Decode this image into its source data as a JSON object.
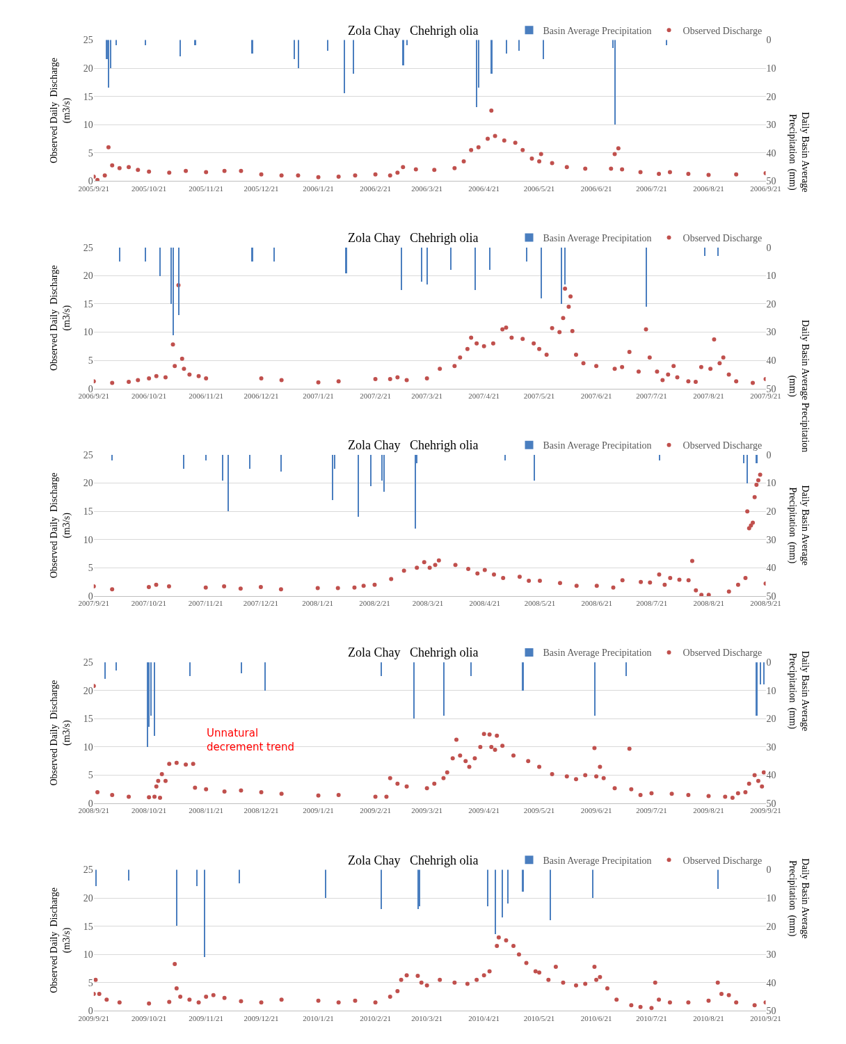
{
  "chart_data": [
    {
      "type": "scatter",
      "title": "Zola Chay   Chehrigh olia",
      "ylabel": "Observed Daily  Discharge\n(m3/s)",
      "y2label": "Daily Basin Average\nPrecipitation  (mm)",
      "legend": "top right",
      "grid": "y",
      "marker": "circle",
      "xlim": [
        "2005-09-21",
        "2006-09-21"
      ],
      "xticks": [
        {
          "value": "2005-09-21",
          "label": "2005/9/21"
        },
        {
          "value": "2005-10-21",
          "label": "2005/10/21"
        },
        {
          "value": "2005-11-21",
          "label": "2005/11/21"
        },
        {
          "value": "2005-12-21",
          "label": "2005/12/21"
        },
        {
          "value": "2006-01-21",
          "label": "2006/1/21"
        },
        {
          "value": "2006-02-21",
          "label": "2006/2/21"
        },
        {
          "value": "2006-03-21",
          "label": "2006/3/21"
        },
        {
          "value": "2006-04-21",
          "label": "2006/4/21"
        },
        {
          "value": "2006-05-21",
          "label": "2006/5/21"
        },
        {
          "value": "2006-06-21",
          "label": "2006/6/21"
        },
        {
          "value": "2006-07-21",
          "label": "2006/7/21"
        },
        {
          "value": "2006-08-21",
          "label": "2006/8/21"
        },
        {
          "value": "2006-09-21",
          "label": "2006/9/21"
        }
      ],
      "ylim": [
        0,
        25
      ],
      "yticks": [
        0,
        5,
        10,
        15,
        20,
        25
      ],
      "y2lim": [
        50,
        0
      ],
      "y2ticks": [
        0,
        10,
        20,
        30,
        40,
        50
      ],
      "series": [
        {
          "name": "Basin Average Precipitation",
          "type": "bar",
          "axis": "y2",
          "color": "#4a7ebf",
          "x": [
            "2005-09-28",
            "2005-09-29",
            "2005-09-30",
            "2005-10-03",
            "2005-10-19",
            "2005-11-07",
            "2005-11-15",
            "2005-12-16",
            "2006-01-08",
            "2006-01-10",
            "2006-01-26",
            "2006-02-04",
            "2006-02-09",
            "2006-03-08",
            "2006-03-10",
            "2006-04-17",
            "2006-04-18",
            "2006-04-25",
            "2006-05-03",
            "2006-05-10",
            "2006-05-23",
            "2006-06-30",
            "2006-07-01",
            "2006-07-29"
          ],
          "values": [
            7,
            17,
            10,
            2,
            2,
            6,
            2,
            5,
            7,
            10,
            4,
            19,
            12,
            9,
            2,
            24,
            17,
            12,
            5,
            4,
            7,
            3,
            30,
            2
          ]
        },
        {
          "name": "Observed Discharge",
          "color": "#c0504d",
          "x": [
            "2005-09-21",
            "2005-09-23",
            "2005-09-27",
            "2005-09-29",
            "2005-10-01",
            "2005-10-05",
            "2005-10-10",
            "2005-10-15",
            "2005-10-21",
            "2005-11-01",
            "2005-11-10",
            "2005-11-21",
            "2005-12-01",
            "2005-12-10",
            "2005-12-21",
            "2006-01-01",
            "2006-01-10",
            "2006-01-21",
            "2006-02-01",
            "2006-02-10",
            "2006-02-21",
            "2006-03-01",
            "2006-03-05",
            "2006-03-08",
            "2006-03-15",
            "2006-03-25",
            "2006-04-05",
            "2006-04-10",
            "2006-04-14",
            "2006-04-18",
            "2006-04-23",
            "2006-04-25",
            "2006-04-27",
            "2006-05-02",
            "2006-05-08",
            "2006-05-12",
            "2006-05-17",
            "2006-05-21",
            "2006-05-22",
            "2006-05-28",
            "2006-06-05",
            "2006-06-15",
            "2006-06-29",
            "2006-07-01",
            "2006-07-03",
            "2006-07-05",
            "2006-07-15",
            "2006-07-25",
            "2006-07-31",
            "2006-08-10",
            "2006-08-21",
            "2006-09-05",
            "2006-09-21"
          ],
          "values": [
            0.8,
            0.2,
            1.0,
            6.0,
            2.8,
            2.3,
            2.5,
            2.0,
            1.7,
            1.5,
            1.8,
            1.6,
            1.8,
            1.8,
            1.2,
            1.0,
            1.0,
            0.7,
            0.8,
            1.0,
            1.2,
            1.0,
            1.5,
            2.5,
            2.1,
            2.0,
            2.3,
            3.5,
            5.5,
            6.0,
            7.5,
            12.5,
            8.0,
            7.2,
            6.8,
            5.5,
            4.0,
            3.5,
            4.8,
            3.2,
            2.5,
            2.2,
            2.2,
            4.8,
            5.8,
            2.1,
            1.6,
            1.3,
            1.6,
            1.3,
            1.1,
            1.2,
            1.4
          ]
        }
      ]
    },
    {
      "type": "scatter",
      "title": "Zola Chay   Chehrigh olia",
      "ylabel": "Observed Daily  Discharge\n(m3/s)",
      "y2label": "Daily Basin Average Precipitation\n(mm)",
      "legend": "top right",
      "grid": "y",
      "marker": "circle",
      "xlim": [
        "2006-09-21",
        "2007-09-21"
      ],
      "xticks": [
        {
          "value": "2006-09-21",
          "label": "2006/9/21"
        },
        {
          "value": "2006-10-21",
          "label": "2006/10/21"
        },
        {
          "value": "2006-11-21",
          "label": "2006/11/21"
        },
        {
          "value": "2006-12-21",
          "label": "2006/12/21"
        },
        {
          "value": "2007-01-21",
          "label": "2007/1/21"
        },
        {
          "value": "2007-02-21",
          "label": "2007/2/21"
        },
        {
          "value": "2007-03-21",
          "label": "2007/3/21"
        },
        {
          "value": "2007-04-21",
          "label": "2007/4/21"
        },
        {
          "value": "2007-05-21",
          "label": "2007/5/21"
        },
        {
          "value": "2007-06-21",
          "label": "2007/6/21"
        },
        {
          "value": "2007-07-21",
          "label": "2007/7/21"
        },
        {
          "value": "2007-08-21",
          "label": "2007/8/21"
        },
        {
          "value": "2007-09-21",
          "label": "2007/9/21"
        }
      ],
      "ylim": [
        0,
        25
      ],
      "yticks": [
        0,
        5,
        10,
        15,
        20,
        25
      ],
      "y2lim": [
        50,
        0
      ],
      "y2ticks": [
        0,
        10,
        20,
        30,
        40,
        50
      ],
      "series": [
        {
          "name": "Basin Average Precipitation",
          "type": "bar",
          "axis": "y2",
          "color": "#4a7ebf",
          "x": [
            "2006-10-05",
            "2006-10-19",
            "2006-10-27",
            "2006-11-02",
            "2006-11-03",
            "2006-11-06",
            "2006-12-16",
            "2006-12-28",
            "2007-02-05",
            "2007-03-07",
            "2007-03-18",
            "2007-03-21",
            "2007-04-03",
            "2007-04-16",
            "2007-04-24",
            "2007-05-14",
            "2007-05-22",
            "2007-06-02",
            "2007-06-04",
            "2007-07-18",
            "2007-08-19",
            "2007-08-26"
          ],
          "values": [
            5,
            5,
            10,
            20,
            31,
            24,
            5,
            5,
            9,
            15,
            12,
            13,
            8,
            15,
            8,
            5,
            18,
            20,
            13,
            21,
            3,
            3
          ]
        },
        {
          "name": "Observed Discharge",
          "color": "#c0504d",
          "x": [
            "2006-09-21",
            "2006-10-01",
            "2006-10-10",
            "2006-10-15",
            "2006-10-21",
            "2006-10-25",
            "2006-10-30",
            "2006-11-03",
            "2006-11-04",
            "2006-11-06",
            "2006-11-08",
            "2006-11-09",
            "2006-11-12",
            "2006-11-17",
            "2006-11-21",
            "2006-12-21",
            "2007-01-01",
            "2007-01-21",
            "2007-02-01",
            "2007-02-21",
            "2007-03-01",
            "2007-03-05",
            "2007-03-10",
            "2007-03-21",
            "2007-03-28",
            "2007-04-05",
            "2007-04-08",
            "2007-04-12",
            "2007-04-14",
            "2007-04-17",
            "2007-04-21",
            "2007-04-26",
            "2007-05-01",
            "2007-05-03",
            "2007-05-06",
            "2007-05-12",
            "2007-05-18",
            "2007-05-21",
            "2007-05-25",
            "2007-05-28",
            "2007-06-01",
            "2007-06-03",
            "2007-06-04",
            "2007-06-06",
            "2007-06-07",
            "2007-06-08",
            "2007-06-10",
            "2007-06-14",
            "2007-06-21",
            "2007-07-01",
            "2007-07-05",
            "2007-07-09",
            "2007-07-14",
            "2007-07-18",
            "2007-07-20",
            "2007-07-24",
            "2007-07-27",
            "2007-07-30",
            "2007-08-02",
            "2007-08-04",
            "2007-08-10",
            "2007-08-14",
            "2007-08-17",
            "2007-08-22",
            "2007-08-24",
            "2007-08-27",
            "2007-08-29",
            "2007-09-01",
            "2007-09-05",
            "2007-09-14",
            "2007-09-21"
          ],
          "values": [
            1.3,
            1.0,
            1.2,
            1.5,
            1.8,
            2.2,
            2.0,
            7.8,
            4.0,
            18.3,
            5.3,
            3.5,
            2.5,
            2.2,
            1.8,
            1.8,
            1.5,
            1.1,
            1.3,
            1.7,
            1.7,
            2.0,
            1.5,
            1.8,
            3.5,
            4.0,
            5.5,
            7.0,
            9.0,
            8.0,
            7.5,
            8.0,
            10.5,
            10.8,
            9.0,
            8.8,
            8.0,
            7.0,
            6.0,
            10.7,
            10.0,
            12.5,
            17.7,
            14.5,
            16.3,
            10.2,
            6.0,
            4.5,
            4.0,
            3.5,
            3.8,
            6.5,
            3.0,
            10.5,
            5.5,
            3.0,
            1.5,
            2.5,
            4.0,
            2.0,
            1.3,
            1.2,
            3.8,
            3.5,
            8.7,
            4.5,
            5.5,
            2.5,
            1.3,
            1.0,
            1.7
          ]
        }
      ]
    },
    {
      "type": "scatter",
      "title": "Zola Chay   Chehrigh olia",
      "ylabel": "Observed Daily  Discharge\n(m3/s)",
      "y2label": "Daily Basin Average\nPrecipitation  (mm)",
      "legend": "top right",
      "grid": "y",
      "marker": "circle",
      "xlim": [
        "2007-09-21",
        "2008-09-21"
      ],
      "xticks": [
        {
          "value": "2007-09-21",
          "label": "2007/9/21"
        },
        {
          "value": "2007-10-21",
          "label": "2007/10/21"
        },
        {
          "value": "2007-11-21",
          "label": "2007/11/21"
        },
        {
          "value": "2007-12-21",
          "label": "2007/12/21"
        },
        {
          "value": "2008-01-21",
          "label": "2008/1/21"
        },
        {
          "value": "2008-02-21",
          "label": "2008/2/21"
        },
        {
          "value": "2008-03-21",
          "label": "2008/3/21"
        },
        {
          "value": "2008-04-21",
          "label": "2008/4/21"
        },
        {
          "value": "2008-05-21",
          "label": "2008/5/21"
        },
        {
          "value": "2008-06-21",
          "label": "2008/6/21"
        },
        {
          "value": "2008-07-21",
          "label": "2008/7/21"
        },
        {
          "value": "2008-08-21",
          "label": "2008/8/21"
        },
        {
          "value": "2008-09-21",
          "label": "2008/9/21"
        }
      ],
      "ylim": [
        0,
        25
      ],
      "yticks": [
        0,
        5,
        10,
        15,
        20,
        25
      ],
      "y2lim": [
        50,
        0
      ],
      "y2ticks": [
        0,
        10,
        20,
        30,
        40,
        50
      ],
      "series": [
        {
          "name": "Basin Average Precipitation",
          "type": "bar",
          "axis": "y2",
          "color": "#4a7ebf",
          "x": [
            "2007-10-01",
            "2007-11-09",
            "2007-11-21",
            "2007-11-30",
            "2007-12-03",
            "2007-12-15",
            "2008-01-01",
            "2008-01-29",
            "2008-01-30",
            "2008-02-12",
            "2008-02-19",
            "2008-02-25",
            "2008-02-26",
            "2008-03-14",
            "2008-03-15",
            "2008-05-02",
            "2008-05-18",
            "2008-07-25",
            "2008-09-09",
            "2008-09-11",
            "2008-09-16"
          ],
          "values": [
            2,
            5,
            2,
            9,
            20,
            5,
            6,
            16,
            5,
            22,
            11,
            9,
            13,
            26,
            3,
            2,
            9,
            2,
            3,
            10,
            3
          ]
        },
        {
          "name": "Observed Discharge",
          "color": "#c0504d",
          "x": [
            "2007-09-21",
            "2007-10-01",
            "2007-10-21",
            "2007-10-25",
            "2007-11-01",
            "2007-11-21",
            "2007-12-01",
            "2007-12-10",
            "2007-12-21",
            "2008-01-01",
            "2008-01-21",
            "2008-02-01",
            "2008-02-10",
            "2008-02-15",
            "2008-02-21",
            "2008-03-01",
            "2008-03-08",
            "2008-03-15",
            "2008-03-19",
            "2008-03-22",
            "2008-03-25",
            "2008-03-27",
            "2008-04-05",
            "2008-04-12",
            "2008-04-17",
            "2008-04-21",
            "2008-04-26",
            "2008-05-01",
            "2008-05-10",
            "2008-05-15",
            "2008-05-21",
            "2008-06-01",
            "2008-06-10",
            "2008-06-21",
            "2008-06-30",
            "2008-07-05",
            "2008-07-15",
            "2008-07-20",
            "2008-07-25",
            "2008-07-28",
            "2008-07-31",
            "2008-08-05",
            "2008-08-10",
            "2008-08-12",
            "2008-08-14",
            "2008-08-17",
            "2008-08-21",
            "2008-09-01",
            "2008-09-06",
            "2008-09-10",
            "2008-09-11",
            "2008-09-12",
            "2008-09-13",
            "2008-09-14",
            "2008-09-15",
            "2008-09-16",
            "2008-09-17",
            "2008-09-18",
            "2008-09-21"
          ],
          "values": [
            1.7,
            1.2,
            1.6,
            2.0,
            1.7,
            1.5,
            1.7,
            1.3,
            1.6,
            1.2,
            1.4,
            1.4,
            1.5,
            1.8,
            2.0,
            3.0,
            4.5,
            5.0,
            6.0,
            5.0,
            5.5,
            6.3,
            5.5,
            4.8,
            4.0,
            4.6,
            3.8,
            3.2,
            3.4,
            2.7,
            2.7,
            2.3,
            1.8,
            1.8,
            1.5,
            2.8,
            2.5,
            2.4,
            3.8,
            2.0,
            3.2,
            2.9,
            2.8,
            6.2,
            1.0,
            0.2,
            0.2,
            0.8,
            2.0,
            3.2,
            15.0,
            12.0,
            12.5,
            13.0,
            17.5,
            19.7,
            20.5,
            21.5,
            2.2
          ]
        }
      ]
    },
    {
      "type": "scatter",
      "title": "Zola Chay   Chehrigh olia",
      "ylabel": "Observed Daily  Discharge\n(m3/s)",
      "y2label": "Daily Basin Average\nPrecipitation  (mm)",
      "legend": "top right",
      "grid": "y",
      "marker": "circle",
      "annotations": [
        "Unnatural\ndecrement trend"
      ],
      "xlim": [
        "2008-09-21",
        "2009-09-21"
      ],
      "xticks": [
        {
          "value": "2008-09-21",
          "label": "2008/9/21"
        },
        {
          "value": "2008-10-21",
          "label": "2008/10/21"
        },
        {
          "value": "2008-11-21",
          "label": "2008/11/21"
        },
        {
          "value": "2008-12-21",
          "label": "2008/12/21"
        },
        {
          "value": "2009-01-21",
          "label": "2009/1/21"
        },
        {
          "value": "2009-02-21",
          "label": "2009/2/21"
        },
        {
          "value": "2009-03-21",
          "label": "2009/3/21"
        },
        {
          "value": "2009-04-21",
          "label": "2009/4/21"
        },
        {
          "value": "2009-05-21",
          "label": "2009/5/21"
        },
        {
          "value": "2009-06-21",
          "label": "2009/6/21"
        },
        {
          "value": "2009-07-21",
          "label": "2009/7/21"
        },
        {
          "value": "2009-08-21",
          "label": "2009/8/21"
        },
        {
          "value": "2009-09-21",
          "label": "2009/9/21"
        }
      ],
      "ylim": [
        0,
        25
      ],
      "yticks": [
        0,
        5,
        10,
        15,
        20,
        25
      ],
      "y2lim": [
        50,
        0
      ],
      "y2ticks": [
        0,
        10,
        20,
        30,
        40,
        50
      ],
      "series": [
        {
          "name": "Basin Average Precipitation",
          "type": "bar",
          "axis": "y2",
          "color": "#4a7ebf",
          "x": [
            "2008-09-27",
            "2008-10-03",
            "2008-10-20",
            "2008-10-21",
            "2008-10-22",
            "2008-10-24",
            "2008-11-12",
            "2008-12-10",
            "2008-12-23",
            "2009-02-24",
            "2009-03-14",
            "2009-03-30",
            "2009-04-14",
            "2009-05-12",
            "2009-06-20",
            "2009-07-07",
            "2009-09-16",
            "2009-09-18",
            "2009-09-20"
          ],
          "values": [
            6,
            3,
            30,
            23,
            19,
            26,
            5,
            4,
            10,
            5,
            20,
            19,
            5,
            10,
            19,
            5,
            19,
            8,
            8
          ]
        },
        {
          "name": "Observed Discharge",
          "color": "#c0504d",
          "x": [
            "2008-09-21",
            "2008-09-23",
            "2008-10-01",
            "2008-10-10",
            "2008-10-21",
            "2008-10-24",
            "2008-10-25",
            "2008-10-26",
            "2008-10-27",
            "2008-10-28",
            "2008-10-30",
            "2008-11-01",
            "2008-11-05",
            "2008-11-10",
            "2008-11-14",
            "2008-11-15",
            "2008-11-21",
            "2008-12-01",
            "2008-12-10",
            "2008-12-21",
            "2009-01-01",
            "2009-01-21",
            "2009-02-01",
            "2009-02-21",
            "2009-02-27",
            "2009-03-01",
            "2009-03-05",
            "2009-03-10",
            "2009-03-21",
            "2009-03-25",
            "2009-03-30",
            "2009-04-01",
            "2009-04-04",
            "2009-04-06",
            "2009-04-08",
            "2009-04-11",
            "2009-04-13",
            "2009-04-16",
            "2009-04-19",
            "2009-04-21",
            "2009-04-24",
            "2009-04-25",
            "2009-04-27",
            "2009-04-28",
            "2009-05-01",
            "2009-05-07",
            "2009-05-15",
            "2009-05-21",
            "2009-05-28",
            "2009-06-05",
            "2009-06-10",
            "2009-06-15",
            "2009-06-20",
            "2009-06-21",
            "2009-06-23",
            "2009-06-25",
            "2009-07-01",
            "2009-07-09",
            "2009-07-10",
            "2009-07-15",
            "2009-07-21",
            "2009-08-01",
            "2009-08-10",
            "2009-08-21",
            "2009-08-30",
            "2009-09-03",
            "2009-09-06",
            "2009-09-10",
            "2009-09-12",
            "2009-09-15",
            "2009-09-17",
            "2009-09-19",
            "2009-09-20"
          ],
          "values": [
            20.8,
            2.0,
            1.5,
            1.2,
            1.1,
            1.2,
            3.0,
            4.0,
            1.0,
            5.2,
            4.0,
            7.0,
            7.2,
            6.9,
            7.0,
            2.8,
            2.5,
            2.1,
            2.3,
            2.0,
            1.7,
            1.4,
            1.5,
            1.2,
            1.2,
            4.5,
            3.5,
            3.0,
            2.7,
            3.5,
            4.5,
            5.5,
            8.0,
            11.3,
            8.5,
            7.5,
            6.5,
            8.0,
            10.0,
            12.3,
            12.2,
            10.0,
            9.5,
            12.0,
            10.2,
            8.5,
            7.5,
            6.5,
            5.2,
            4.8,
            4.3,
            5.0,
            9.8,
            4.8,
            6.5,
            4.5,
            2.7,
            9.7,
            2.5,
            1.5,
            1.8,
            1.7,
            1.5,
            1.3,
            1.2,
            1.0,
            1.8,
            2.0,
            3.5,
            5.0,
            4.0,
            3.0,
            5.5
          ]
        }
      ]
    },
    {
      "type": "scatter",
      "title": "Zola Chay   Chehrigh olia",
      "ylabel": "Observed Daily  Discharge\n(m3/s)",
      "y2label": "Daily Basin Average\nPrecipitation  (mm)",
      "legend": "top right",
      "grid": "y",
      "marker": "circle",
      "xlim": [
        "2009-09-21",
        "2010-09-21"
      ],
      "xticks": [
        {
          "value": "2009-09-21",
          "label": "2009/9/21"
        },
        {
          "value": "2009-10-21",
          "label": "2009/10/21"
        },
        {
          "value": "2009-11-21",
          "label": "2009/11/21"
        },
        {
          "value": "2009-12-21",
          "label": "2009/12/21"
        },
        {
          "value": "2010-01-21",
          "label": "2010/1/21"
        },
        {
          "value": "2010-02-21",
          "label": "2010/2/21"
        },
        {
          "value": "2010-03-21",
          "label": "2010/3/21"
        },
        {
          "value": "2010-04-21",
          "label": "2010/4/21"
        },
        {
          "value": "2010-05-21",
          "label": "2010/5/21"
        },
        {
          "value": "2010-06-21",
          "label": "2010/6/21"
        },
        {
          "value": "2010-07-21",
          "label": "2010/7/21"
        },
        {
          "value": "2010-08-21",
          "label": "2010/8/21"
        },
        {
          "value": "2010-09-21",
          "label": "2010/9/21"
        }
      ],
      "ylim": [
        0,
        25
      ],
      "yticks": [
        0,
        5,
        10,
        15,
        20,
        25
      ],
      "y2lim": [
        50,
        0
      ],
      "y2ticks": [
        0,
        10,
        20,
        30,
        40,
        50
      ],
      "series": [
        {
          "name": "Basin Average Precipitation",
          "type": "bar",
          "axis": "y2",
          "color": "#4a7ebf",
          "x": [
            "2009-09-22",
            "2009-10-10",
            "2009-11-05",
            "2009-11-16",
            "2009-11-20",
            "2009-12-09",
            "2010-01-25",
            "2010-02-24",
            "2010-03-16",
            "2010-03-17",
            "2010-04-23",
            "2010-04-27",
            "2010-05-01",
            "2010-05-04",
            "2010-05-12",
            "2010-05-27",
            "2010-06-19",
            "2010-08-26"
          ],
          "values": [
            6,
            4,
            20,
            6,
            31,
            5,
            10,
            14,
            14,
            13,
            13,
            23,
            17,
            12,
            8,
            18,
            10,
            7
          ]
        },
        {
          "name": "Observed Discharge",
          "color": "#c0504d",
          "x": [
            "2009-09-21",
            "2009-09-22",
            "2009-09-24",
            "2009-09-28",
            "2009-10-05",
            "2009-10-21",
            "2009-11-01",
            "2009-11-04",
            "2009-11-05",
            "2009-11-07",
            "2009-11-12",
            "2009-11-17",
            "2009-11-21",
            "2009-11-25",
            "2009-12-01",
            "2009-12-10",
            "2009-12-21",
            "2010-01-01",
            "2010-01-21",
            "2010-02-01",
            "2010-02-10",
            "2010-02-21",
            "2010-03-01",
            "2010-03-05",
            "2010-03-07",
            "2010-03-10",
            "2010-03-16",
            "2010-03-18",
            "2010-03-21",
            "2010-03-28",
            "2010-04-05",
            "2010-04-12",
            "2010-04-17",
            "2010-04-21",
            "2010-04-24",
            "2010-04-28",
            "2010-04-29",
            "2010-05-03",
            "2010-05-07",
            "2010-05-10",
            "2010-05-14",
            "2010-05-19",
            "2010-05-21",
            "2010-05-26",
            "2010-05-30",
            "2010-06-03",
            "2010-06-10",
            "2010-06-15",
            "2010-06-20",
            "2010-06-21",
            "2010-06-23",
            "2010-06-27",
            "2010-07-02",
            "2010-07-10",
            "2010-07-15",
            "2010-07-21",
            "2010-07-23",
            "2010-07-25",
            "2010-07-31",
            "2010-08-10",
            "2010-08-21",
            "2010-08-26",
            "2010-08-28",
            "2010-09-01",
            "2010-09-05",
            "2010-09-15",
            "2010-09-21"
          ],
          "values": [
            3.0,
            5.5,
            3.0,
            2.0,
            1.5,
            1.3,
            1.6,
            8.3,
            4.0,
            2.5,
            2.0,
            1.5,
            2.5,
            2.8,
            2.3,
            1.7,
            1.5,
            2.0,
            1.8,
            1.5,
            1.8,
            1.5,
            2.5,
            3.5,
            5.5,
            6.3,
            6.2,
            5.0,
            4.5,
            5.5,
            5.0,
            4.8,
            5.5,
            6.3,
            7.0,
            11.5,
            13.0,
            12.5,
            11.5,
            10.0,
            8.5,
            7.0,
            6.8,
            5.5,
            7.8,
            5.0,
            4.5,
            4.8,
            7.8,
            5.5,
            6.0,
            4.0,
            2.0,
            1.0,
            0.7,
            0.5,
            5.0,
            2.0,
            1.5,
            1.5,
            1.8,
            5.0,
            3.0,
            2.8,
            1.5,
            1.0,
            1.5
          ]
        }
      ]
    }
  ]
}
